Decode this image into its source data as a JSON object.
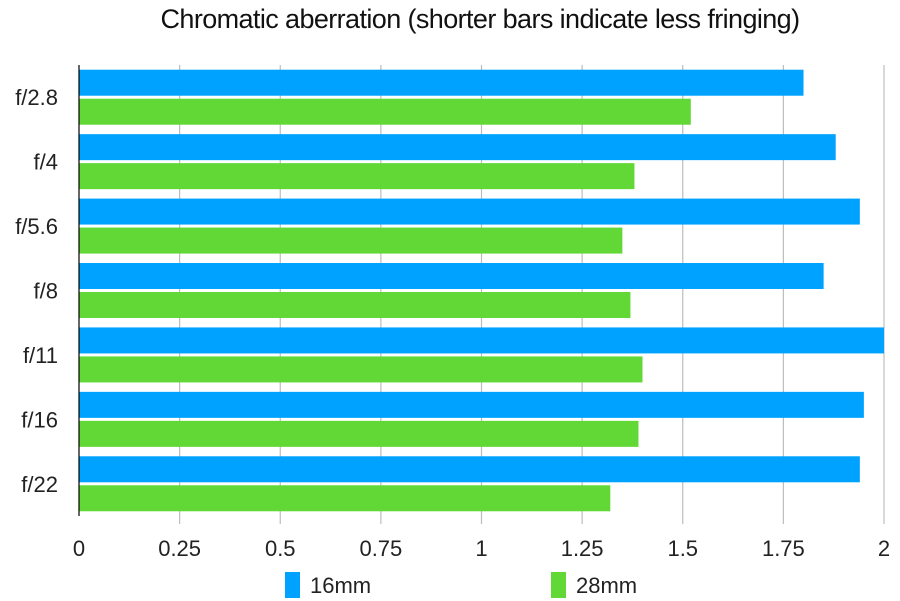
{
  "chart_data": {
    "type": "bar",
    "orientation": "horizontal",
    "title": "Chromatic aberration (shorter bars indicate less fringing)",
    "xlabel": "",
    "ylabel": "",
    "categories": [
      "f/2.8",
      "f/4",
      "f/5.6",
      "f/8",
      "f/11",
      "f/16",
      "f/22"
    ],
    "series": [
      {
        "name": "16mm",
        "color": "#00a2ff",
        "values": [
          1.8,
          1.88,
          1.94,
          1.85,
          2.0,
          1.95,
          1.94
        ]
      },
      {
        "name": "28mm",
        "color": "#61d836",
        "values": [
          1.52,
          1.38,
          1.35,
          1.37,
          1.4,
          1.39,
          1.32
        ]
      }
    ],
    "xlim": [
      0,
      2
    ],
    "xticks": [
      "0",
      "0.25",
      "0.5",
      "0.75",
      "1",
      "1.25",
      "1.5",
      "1.75",
      "2"
    ],
    "xtick_values": [
      0,
      0.25,
      0.5,
      0.75,
      1,
      1.25,
      1.5,
      1.75,
      2
    ],
    "grid": true,
    "legend_position": "bottom"
  }
}
